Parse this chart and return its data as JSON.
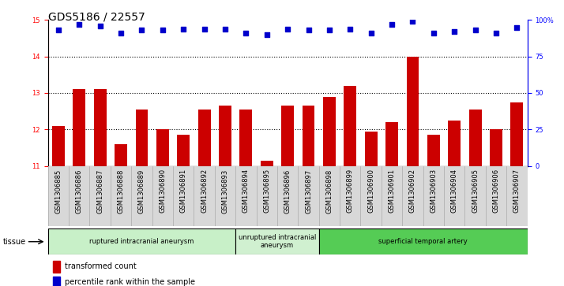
{
  "title": "GDS5186 / 22557",
  "samples": [
    "GSM1306885",
    "GSM1306886",
    "GSM1306887",
    "GSM1306888",
    "GSM1306889",
    "GSM1306890",
    "GSM1306891",
    "GSM1306892",
    "GSM1306893",
    "GSM1306894",
    "GSM1306895",
    "GSM1306896",
    "GSM1306897",
    "GSM1306898",
    "GSM1306899",
    "GSM1306900",
    "GSM1306901",
    "GSM1306902",
    "GSM1306903",
    "GSM1306904",
    "GSM1306905",
    "GSM1306906",
    "GSM1306907"
  ],
  "transformed_count": [
    12.1,
    13.1,
    13.1,
    11.6,
    12.55,
    12.0,
    11.85,
    12.55,
    12.65,
    12.55,
    11.15,
    12.65,
    12.65,
    12.9,
    13.2,
    11.95,
    12.2,
    14.0,
    11.85,
    12.25,
    12.55,
    12.0,
    12.75
  ],
  "percentile_rank": [
    93,
    97,
    96,
    91,
    93,
    93,
    94,
    94,
    94,
    91,
    90,
    94,
    93,
    93,
    94,
    91,
    97,
    99,
    91,
    92,
    93,
    91,
    95
  ],
  "ylim_left": [
    11,
    15
  ],
  "ylim_right": [
    0,
    100
  ],
  "yticks_left": [
    11,
    12,
    13,
    14,
    15
  ],
  "yticks_right": [
    0,
    25,
    50,
    75,
    100
  ],
  "bar_color": "#cc0000",
  "dot_color": "#0000cc",
  "tissue_groups": [
    {
      "label": "ruptured intracranial aneurysm",
      "start": 0,
      "end": 9,
      "color": "#c8f0c8"
    },
    {
      "label": "unruptured intracranial\naneurysm",
      "start": 9,
      "end": 13,
      "color": "#d0f0d0"
    },
    {
      "label": "superficial temporal artery",
      "start": 13,
      "end": 23,
      "color": "#55cc55"
    }
  ],
  "legend_bar_label": "transformed count",
  "legend_dot_label": "percentile rank within the sample",
  "tissue_label": "tissue",
  "plot_bg_color": "#ffffff",
  "xticklabel_bg_color": "#d8d8d8",
  "grid_color": "#000000",
  "title_fontsize": 10,
  "tick_fontsize": 6,
  "legend_fontsize": 7
}
